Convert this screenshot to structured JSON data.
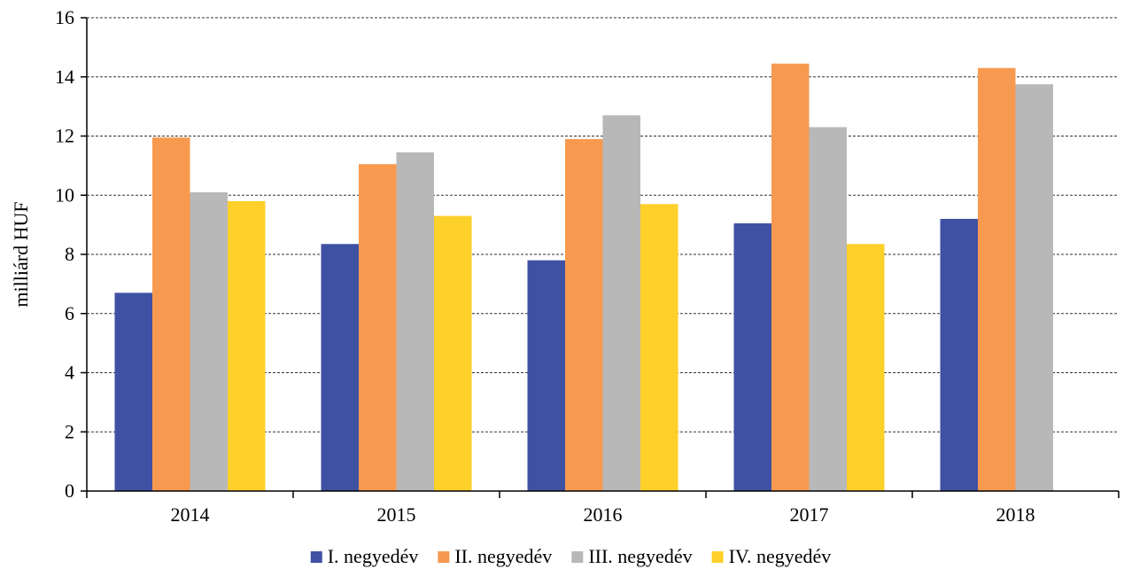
{
  "chart_data": {
    "type": "bar",
    "title": "",
    "xlabel": "",
    "ylabel": "milliárd HUF",
    "ylim": [
      0,
      16
    ],
    "yticks": [
      0,
      2,
      4,
      6,
      8,
      10,
      12,
      14,
      16
    ],
    "grid": "horizontal dashed",
    "legend_position": "bottom",
    "categories": [
      "2014",
      "2015",
      "2016",
      "2017",
      "2018"
    ],
    "series": [
      {
        "name": "I. negyedév",
        "color": "#3f51a3",
        "values": [
          6.7,
          8.35,
          7.8,
          9.05,
          9.2
        ]
      },
      {
        "name": "II. negyedév",
        "color": "#f79a4f",
        "values": [
          11.95,
          11.05,
          11.9,
          14.45,
          14.3
        ]
      },
      {
        "name": "III. negyedév",
        "color": "#b8b8b8",
        "values": [
          10.1,
          11.45,
          12.7,
          12.3,
          13.75
        ]
      },
      {
        "name": "IV. negyedév",
        "color": "#fdd02a",
        "values": [
          9.8,
          9.3,
          9.7,
          8.35,
          null
        ]
      }
    ]
  }
}
